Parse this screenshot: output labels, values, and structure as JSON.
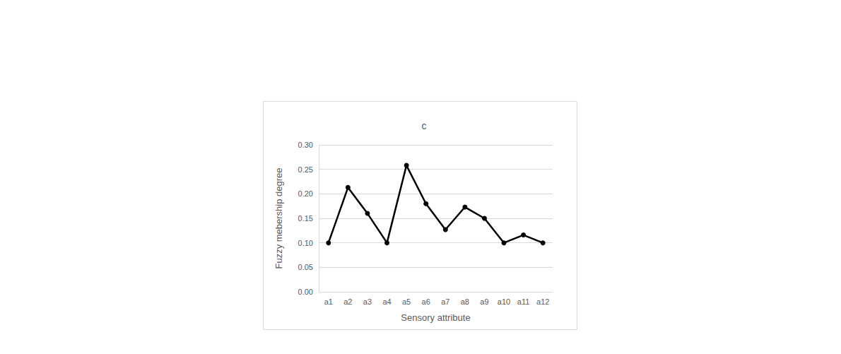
{
  "chart_data": {
    "type": "line",
    "title": "c",
    "x_label": "Sensory attribute",
    "y_label": "Fuzzy mebership degree",
    "categories": [
      "a1",
      "a2",
      "a3",
      "a4",
      "a5",
      "a6",
      "a7",
      "a8",
      "a9",
      "a10",
      "a11",
      "a12"
    ],
    "values": [
      0.1,
      0.213,
      0.16,
      0.1,
      0.258,
      0.18,
      0.127,
      0.173,
      0.15,
      0.1,
      0.116,
      0.1
    ],
    "color": "#000000",
    "marker": "circle",
    "ylim": [
      0,
      0.3
    ],
    "yticks": [
      {
        "value": 0,
        "label": "0.00"
      },
      {
        "value": 0.05,
        "label": "0.05"
      },
      {
        "value": 0.1,
        "label": "0.10"
      },
      {
        "value": 0.15,
        "label": "0.15"
      },
      {
        "value": 0.2,
        "label": "0.20"
      },
      {
        "value": 0.25,
        "label": "0.25"
      },
      {
        "value": 0.3,
        "label": "0.30"
      }
    ],
    "grid": true
  }
}
